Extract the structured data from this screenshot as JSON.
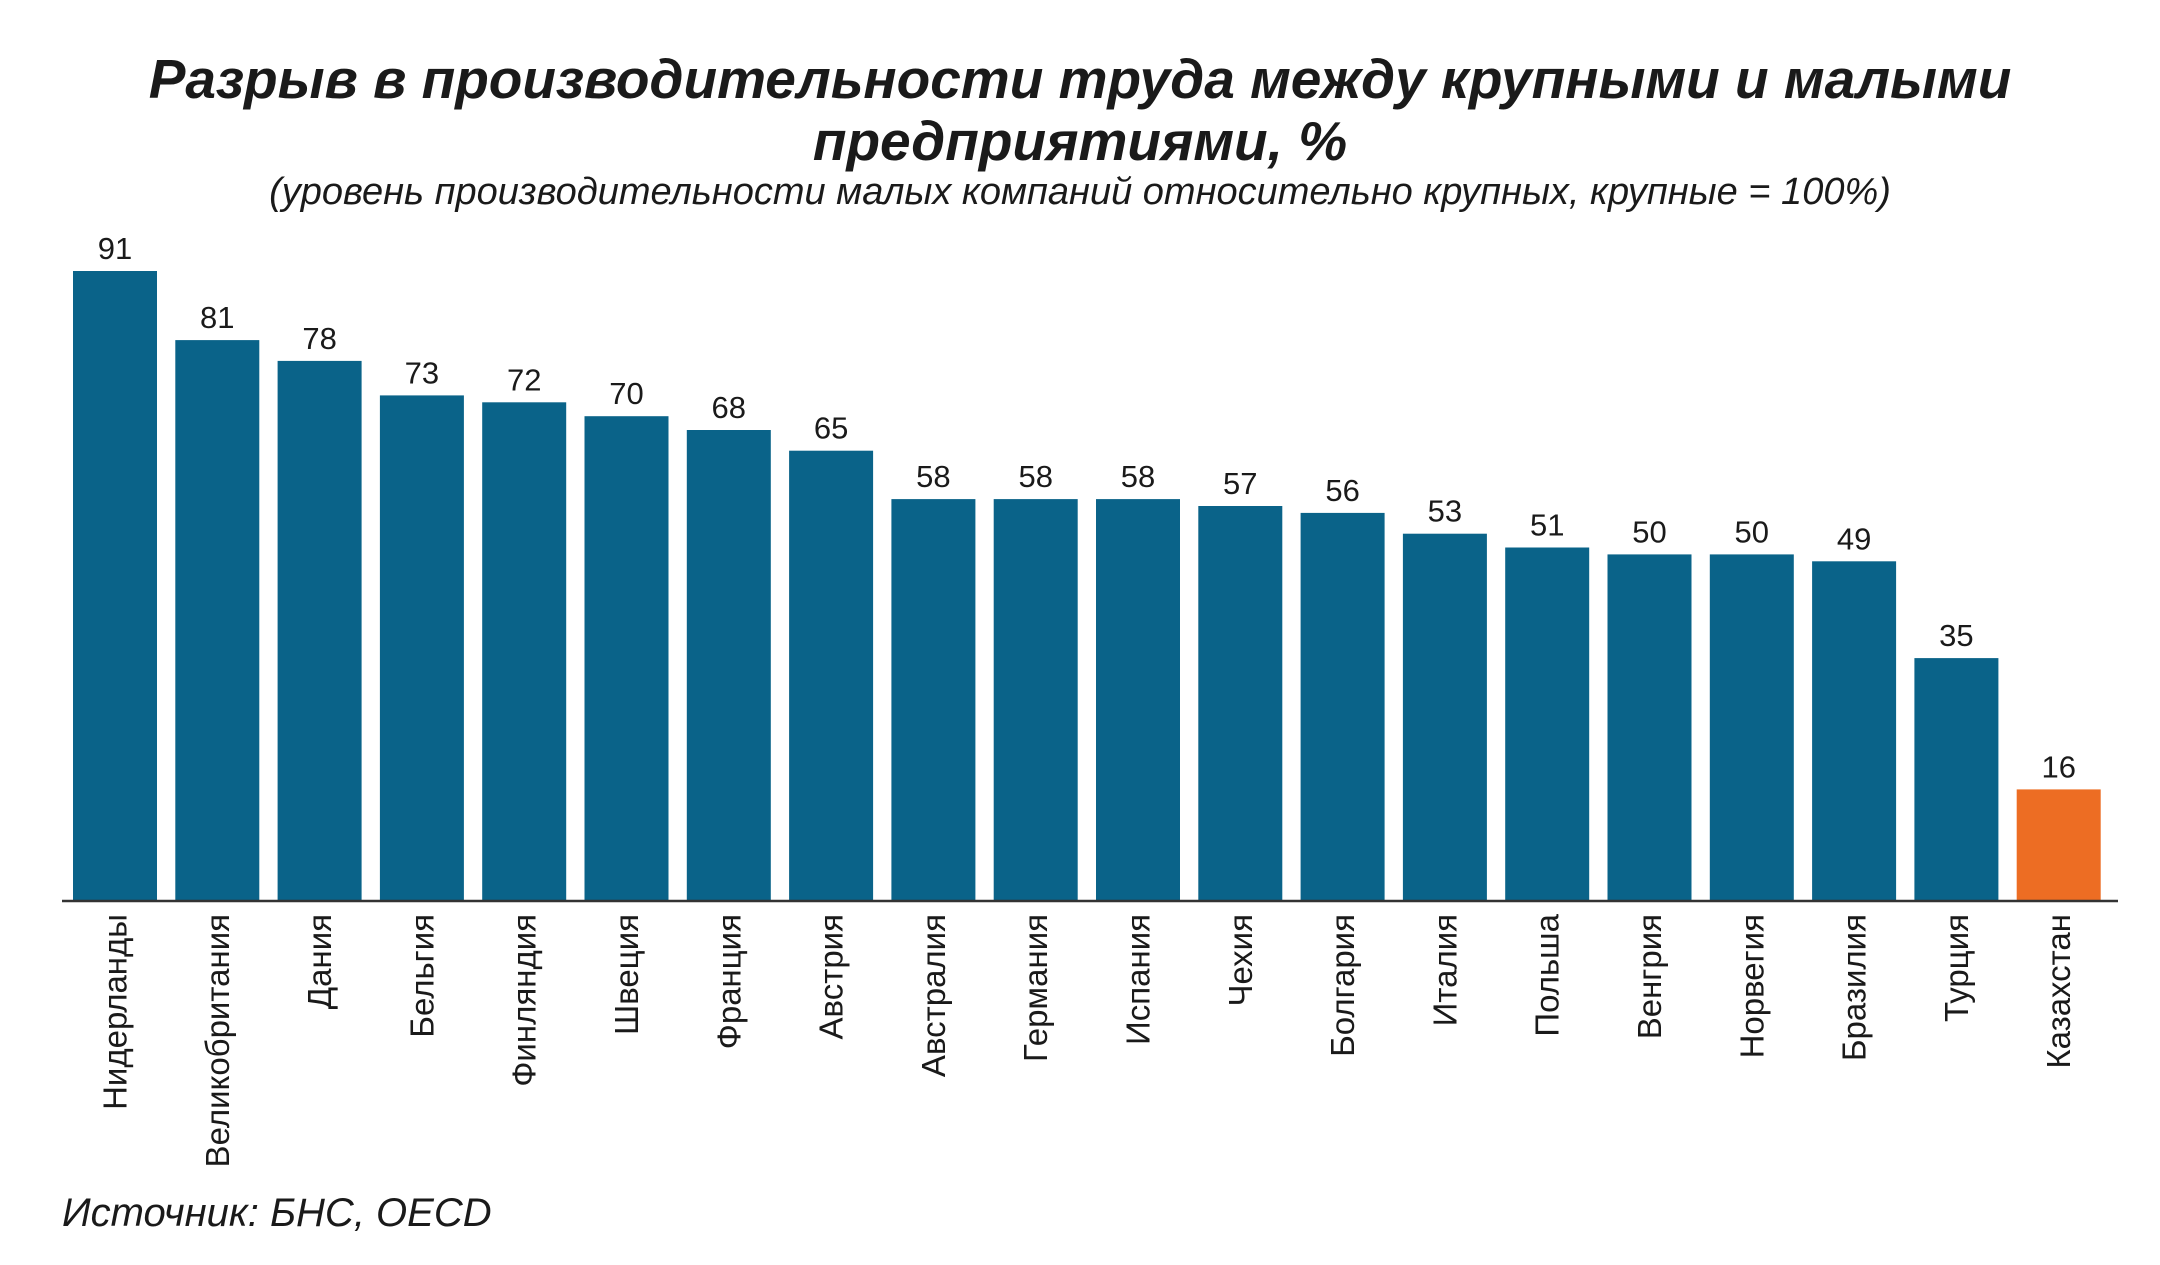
{
  "chart_data": {
    "type": "bar",
    "title_lines": [
      "Разрыв в производительности труда между крупными и малыми",
      "предприятиями, %"
    ],
    "subtitle": "(уровень производительности малых компаний относительно крупных, крупные = 100%)",
    "categories": [
      "Нидерланды",
      "Великобритания",
      "Дания",
      "Бельгия",
      "Финляндия",
      "Швеция",
      "Франция",
      "Австрия",
      "Австралия",
      "Германия",
      "Испания",
      "Чехия",
      "Болгария",
      "Италия",
      "Польша",
      "Венгрия",
      "Норвегия",
      "Бразилия",
      "Турция",
      "Казахстан"
    ],
    "values": [
      91,
      81,
      78,
      73,
      72,
      70,
      68,
      65,
      58,
      58,
      58,
      57,
      56,
      53,
      51,
      50,
      50,
      49,
      35,
      16
    ],
    "highlight_category": "Казахстан",
    "colors": {
      "bar": "#0a6389",
      "highlight": "#ed6d23",
      "axis": "#333333"
    },
    "ylim": [
      0,
      91
    ],
    "grid": false,
    "legend": "none",
    "source": "Источник: БНС, OECD"
  }
}
